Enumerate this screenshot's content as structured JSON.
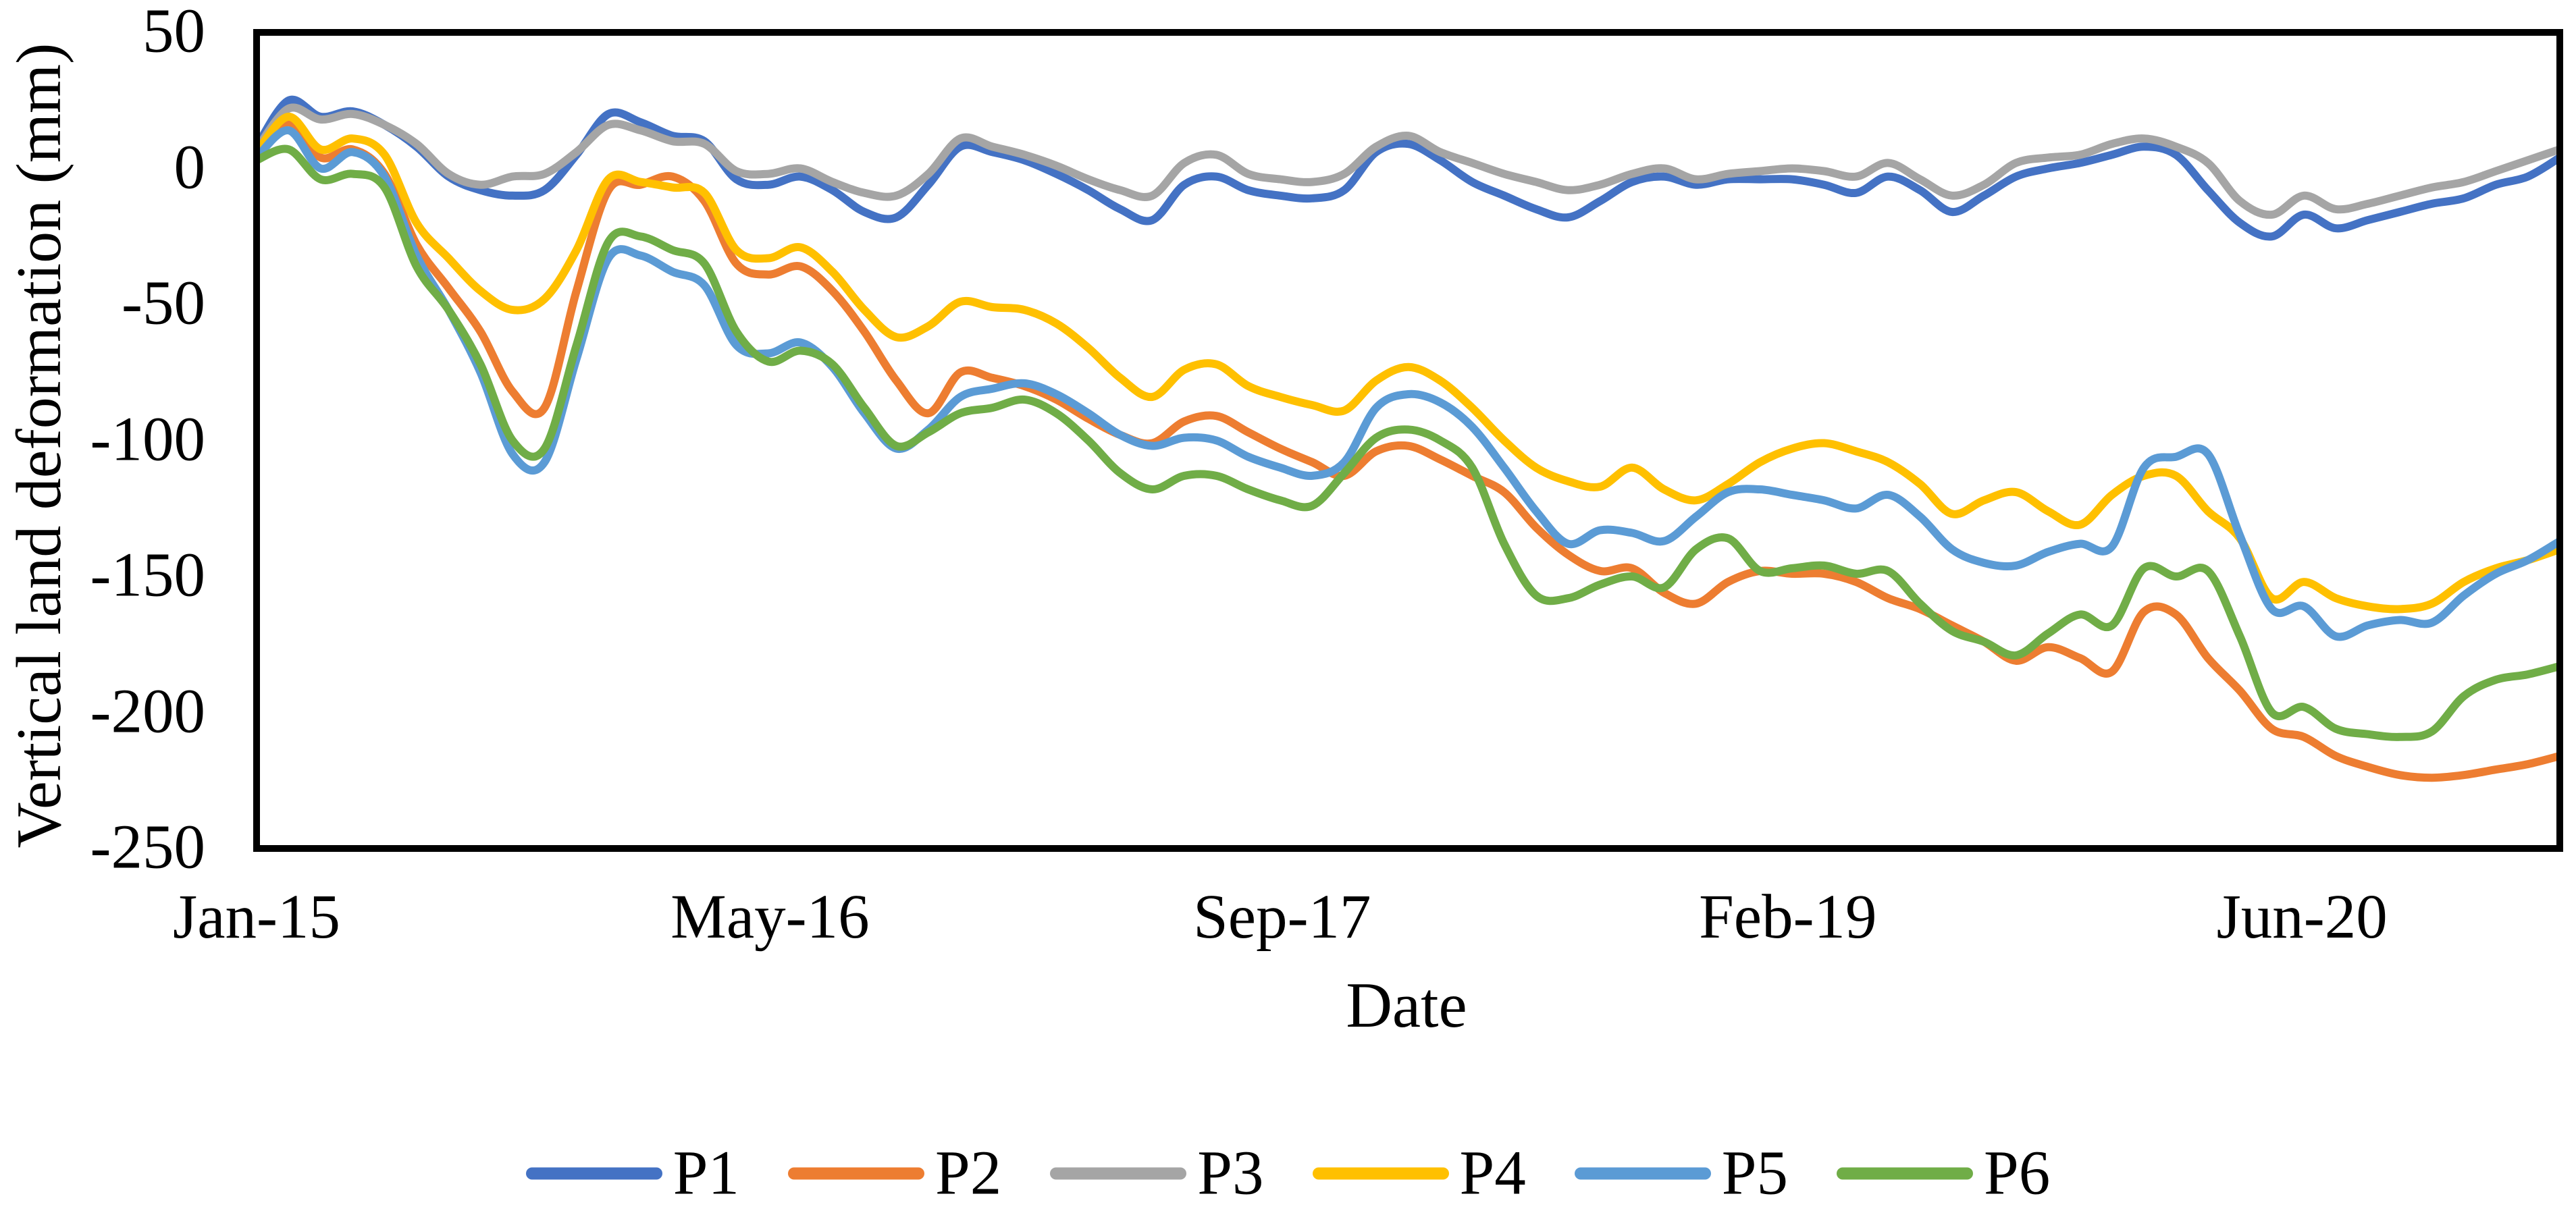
{
  "figure": {
    "background": "#ffffff",
    "text_color": "#000000"
  },
  "chart_data": {
    "type": "line",
    "title": "",
    "xlabel": "Date",
    "ylabel": "Vertical land deformation (mm)",
    "ylim": [
      -250,
      50
    ],
    "yticks": [
      50,
      0,
      -50,
      -100,
      -150,
      -200,
      -250
    ],
    "xticks": [
      {
        "pos": 0,
        "label": "Jan-15"
      },
      {
        "pos": 16.05,
        "label": "May-16"
      },
      {
        "pos": 32.06,
        "label": "Sep-17"
      },
      {
        "pos": 47.87,
        "label": "Feb-19"
      },
      {
        "pos": 63.94,
        "label": "Jun-20"
      }
    ],
    "x_time": {
      "start": "Jan-15",
      "end": "Jan-21",
      "step": "monthly",
      "n_points": 73
    },
    "grid": false,
    "legend_position": "bottom",
    "axis_color": "#000000",
    "frame_stroke_width": 10,
    "line_width": 12,
    "series": [
      {
        "name": "P1",
        "color": "#4472C4",
        "values": [
          8,
          25,
          19,
          21,
          16,
          8,
          -3,
          -8,
          -10,
          -8,
          5,
          20,
          17,
          12,
          10,
          -4,
          -6,
          -3,
          -8,
          -16,
          -18,
          -6,
          8,
          6,
          3,
          -2,
          -8,
          -15,
          -19,
          -6,
          -3,
          -8,
          -10,
          -11,
          -8,
          6,
          9,
          3,
          -5,
          -10,
          -15,
          -18,
          -12,
          -5,
          -3,
          -6,
          -4,
          -4,
          -4,
          -6,
          -9,
          -3,
          -8,
          -16,
          -10,
          -3,
          0,
          2,
          5,
          8,
          5,
          -8,
          -20,
          -25,
          -17,
          -22,
          -19,
          -16,
          -13,
          -11,
          -6,
          -3,
          4
        ]
      },
      {
        "name": "P2",
        "color": "#ED7D31",
        "values": [
          5,
          17,
          4,
          7,
          -2,
          -28,
          -44,
          -60,
          -82,
          -88,
          -45,
          -8,
          -6,
          -3,
          -12,
          -35,
          -39,
          -36,
          -45,
          -60,
          -78,
          -90,
          -75,
          -77,
          -80,
          -85,
          -92,
          -98,
          -101,
          -93,
          -91,
          -97,
          -103,
          -108,
          -113,
          -104,
          -102,
          -107,
          -113,
          -119,
          -132,
          -142,
          -148,
          -147,
          -156,
          -160,
          -152,
          -148,
          -149,
          -149,
          -152,
          -158,
          -162,
          -168,
          -174,
          -181,
          -176,
          -180,
          -185,
          -163,
          -164,
          -180,
          -192,
          -206,
          -209,
          -216,
          -220,
          -223,
          -224,
          -223,
          -221,
          -219,
          -216
        ]
      },
      {
        "name": "P3",
        "color": "#A5A5A5",
        "values": [
          7,
          22,
          18,
          20,
          16,
          9,
          -2,
          -6,
          -3,
          -2,
          6,
          16,
          14,
          10,
          9,
          -1,
          -2,
          0,
          -5,
          -9,
          -10,
          -2,
          11,
          8,
          5,
          1,
          -4,
          -8,
          -10,
          2,
          5,
          -2,
          -4,
          -5,
          -2,
          8,
          12,
          6,
          2,
          -2,
          -5,
          -8,
          -6,
          -2,
          0,
          -4,
          -2,
          -1,
          0,
          -1,
          -3,
          2,
          -4,
          -10,
          -6,
          2,
          4,
          5,
          9,
          11,
          8,
          2,
          -12,
          -17,
          -10,
          -15,
          -13,
          -10,
          -7,
          -5,
          -1,
          3,
          7
        ]
      },
      {
        "name": "P4",
        "color": "#FFC000",
        "values": [
          6,
          19,
          7,
          11,
          5,
          -20,
          -33,
          -45,
          -52,
          -48,
          -30,
          -4,
          -5,
          -7,
          -9,
          -30,
          -33,
          -29,
          -38,
          -52,
          -62,
          -58,
          -49,
          -51,
          -52,
          -57,
          -66,
          -77,
          -84,
          -74,
          -72,
          -80,
          -84,
          -87,
          -89,
          -78,
          -73,
          -78,
          -88,
          -100,
          -110,
          -115,
          -117,
          -110,
          -118,
          -122,
          -116,
          -108,
          -103,
          -101,
          -104,
          -108,
          -116,
          -127,
          -122,
          -119,
          -126,
          -131,
          -120,
          -113,
          -113,
          -126,
          -136,
          -158,
          -152,
          -158,
          -161,
          -162,
          -160,
          -152,
          -147,
          -144,
          -140
        ]
      },
      {
        "name": "P5",
        "color": "#5B9BD5",
        "values": [
          4,
          14,
          0,
          6,
          -3,
          -32,
          -52,
          -75,
          -105,
          -108,
          -70,
          -33,
          -32,
          -38,
          -43,
          -65,
          -68,
          -64,
          -73,
          -90,
          -103,
          -96,
          -84,
          -81,
          -79,
          -83,
          -90,
          -98,
          -102,
          -99,
          -100,
          -106,
          -110,
          -113,
          -108,
          -88,
          -83,
          -86,
          -95,
          -110,
          -126,
          -138,
          -133,
          -134,
          -137,
          -128,
          -119,
          -118,
          -120,
          -122,
          -125,
          -120,
          -128,
          -140,
          -145,
          -146,
          -141,
          -138,
          -139,
          -110,
          -106,
          -105,
          -135,
          -162,
          -161,
          -172,
          -168,
          -166,
          -167,
          -157,
          -149,
          -144,
          -137
        ]
      },
      {
        "name": "P6",
        "color": "#70AD47",
        "values": [
          3,
          7,
          -4,
          -2,
          -7,
          -36,
          -52,
          -72,
          -100,
          -103,
          -65,
          -27,
          -25,
          -30,
          -35,
          -60,
          -71,
          -67,
          -72,
          -88,
          -102,
          -97,
          -90,
          -88,
          -85,
          -90,
          -100,
          -112,
          -118,
          -113,
          -113,
          -118,
          -122,
          -124,
          -112,
          -99,
          -96,
          -100,
          -110,
          -138,
          -157,
          -158,
          -153,
          -150,
          -154,
          -140,
          -136,
          -148,
          -147,
          -146,
          -149,
          -148,
          -160,
          -170,
          -174,
          -179,
          -171,
          -164,
          -168,
          -147,
          -150,
          -148,
          -172,
          -200,
          -198,
          -206,
          -208,
          -209,
          -207,
          -194,
          -188,
          -186,
          -183
        ]
      }
    ]
  }
}
